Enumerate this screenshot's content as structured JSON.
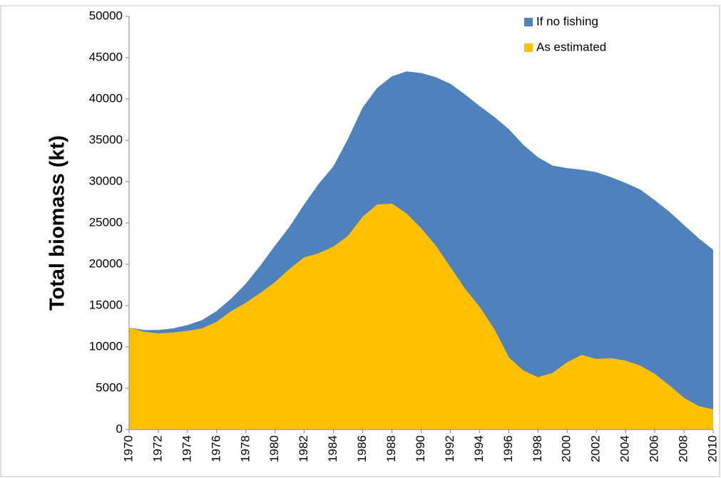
{
  "chart_data": {
    "type": "area",
    "y_label": "Total biomass (kt)",
    "x": [
      1970,
      1971,
      1972,
      1973,
      1974,
      1975,
      1976,
      1977,
      1978,
      1979,
      1980,
      1981,
      1982,
      1983,
      1984,
      1985,
      1986,
      1987,
      1988,
      1989,
      1990,
      1991,
      1992,
      1993,
      1994,
      1995,
      1996,
      1997,
      1998,
      1999,
      2000,
      2001,
      2002,
      2003,
      2004,
      2005,
      2006,
      2007,
      2008,
      2009,
      2010
    ],
    "xlim": [
      1970,
      2010
    ],
    "xticks": [
      1970,
      1972,
      1974,
      1976,
      1978,
      1980,
      1982,
      1984,
      1986,
      1988,
      1990,
      1992,
      1994,
      1996,
      1998,
      2000,
      2002,
      2004,
      2006,
      2008,
      2010
    ],
    "ylim": [
      0,
      50000
    ],
    "yticks": [
      0,
      5000,
      10000,
      15000,
      20000,
      25000,
      30000,
      35000,
      40000,
      45000,
      50000
    ],
    "legend": "upper right",
    "series": [
      {
        "name": "If no fishing",
        "color": "#4f81bd",
        "values": [
          12300,
          12000,
          12000,
          12200,
          12600,
          13200,
          14300,
          15800,
          17600,
          19800,
          22200,
          24500,
          27200,
          29700,
          31800,
          35100,
          38900,
          41300,
          42700,
          43300,
          43100,
          42600,
          41800,
          40500,
          39100,
          37800,
          36300,
          34400,
          32900,
          31900,
          31600,
          31400,
          31100,
          30500,
          29800,
          29000,
          27700,
          26300,
          24700,
          23100,
          21700
        ]
      },
      {
        "name": "As estimated",
        "color": "#ffc000",
        "values": [
          12300,
          11800,
          11600,
          11700,
          11900,
          12200,
          13000,
          14300,
          15300,
          16500,
          17800,
          19400,
          20800,
          21300,
          22100,
          23400,
          25700,
          27200,
          27300,
          26100,
          24300,
          22200,
          19600,
          17000,
          14800,
          12100,
          8700,
          7100,
          6300,
          6800,
          8100,
          9000,
          8500,
          8600,
          8300,
          7700,
          6700,
          5300,
          3800,
          2800,
          2400
        ]
      }
    ]
  }
}
